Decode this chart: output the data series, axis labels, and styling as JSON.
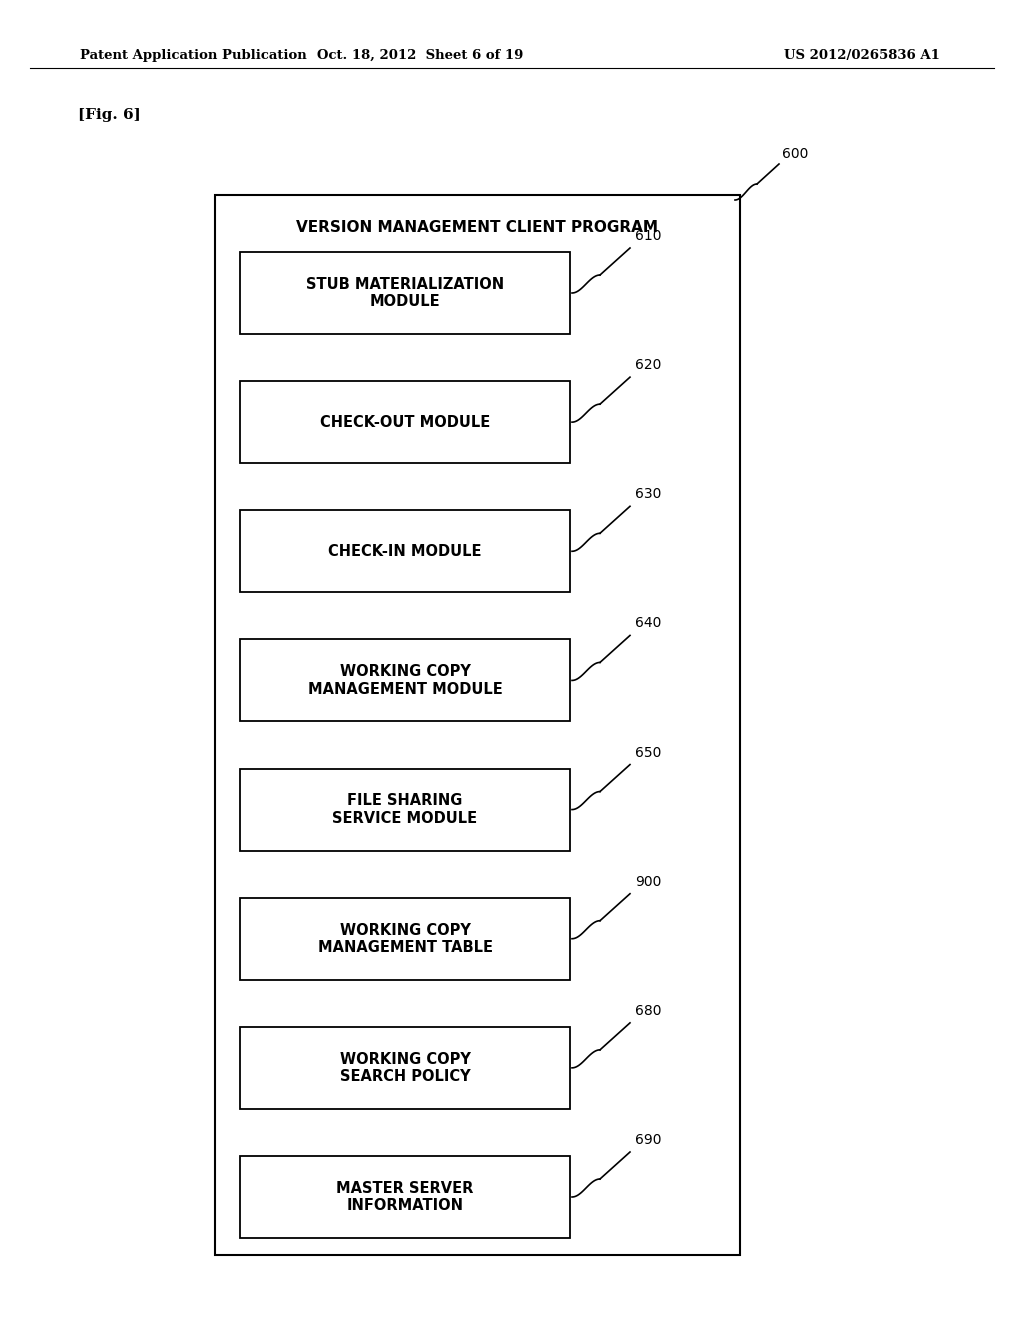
{
  "header_left": "Patent Application Publication",
  "header_center": "Oct. 18, 2012  Sheet 6 of 19",
  "header_right": "US 2012/0265836 A1",
  "fig_label": "[Fig. 6]",
  "outer_box_label": "VERSION MANAGEMENT CLIENT PROGRAM",
  "outer_box_ref": "600",
  "modules": [
    {
      "label": "STUB MATERIALIZATION\nMODULE",
      "ref": "610"
    },
    {
      "label": "CHECK-OUT MODULE",
      "ref": "620"
    },
    {
      "label": "CHECK-IN MODULE",
      "ref": "630"
    },
    {
      "label": "WORKING COPY\nMANAGEMENT MODULE",
      "ref": "640"
    },
    {
      "label": "FILE SHARING\nSERVICE MODULE",
      "ref": "650"
    },
    {
      "label": "WORKING COPY\nMANAGEMENT TABLE",
      "ref": "900"
    },
    {
      "label": "WORKING COPY\nSEARCH POLICY",
      "ref": "680"
    },
    {
      "label": "MASTER SERVER\nINFORMATION",
      "ref": "690"
    }
  ],
  "bg_color": "#ffffff",
  "box_facecolor": "#ffffff",
  "box_edgecolor": "#000000",
  "text_color": "#000000"
}
